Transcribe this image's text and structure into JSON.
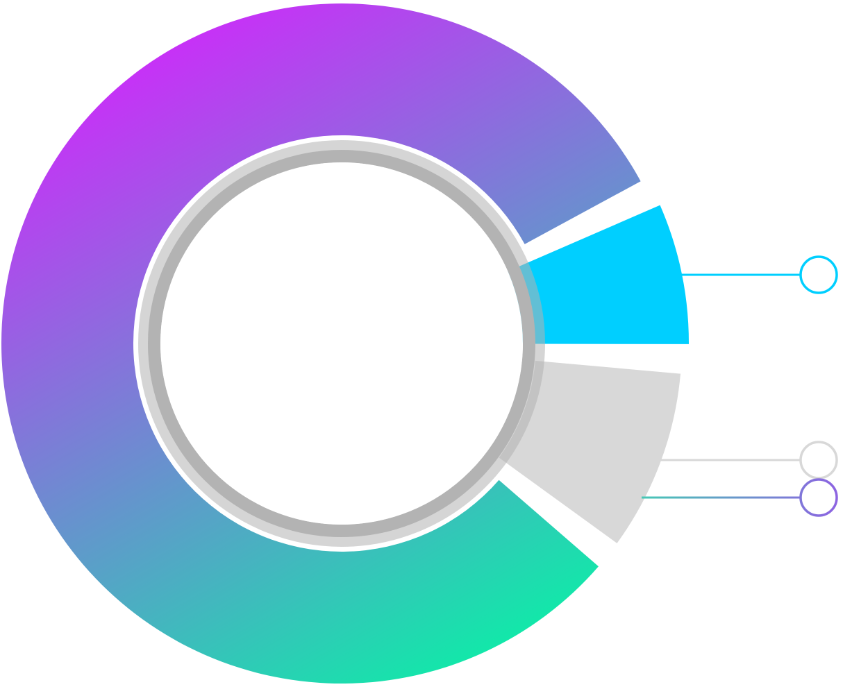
{
  "chart_data": {
    "type": "pie",
    "variant": "exploded-donut-infographic",
    "title": "",
    "slices": [
      {
        "label": "",
        "value": 80,
        "color_stops": [
          "#cc2cf9",
          "#0af0a6"
        ],
        "fill": "gradient"
      },
      {
        "label": "",
        "value": 6.5,
        "color": "#00cfff"
      },
      {
        "label": "",
        "value": 8.5,
        "color": "#d8d8d8"
      }
    ],
    "callouts": [
      {
        "slice": 1,
        "marker": "ring",
        "stroke": "#00cfff"
      },
      {
        "slice": 2,
        "marker": "ring",
        "stroke": "#d8d8d8"
      },
      {
        "slice": 0,
        "marker": "ring",
        "stroke_stops": [
          "#46c9b5",
          "#8e62e2"
        ]
      }
    ],
    "inner_ring": {
      "color": "#b3b3b3"
    },
    "legend": "none",
    "data_labels": "none"
  }
}
